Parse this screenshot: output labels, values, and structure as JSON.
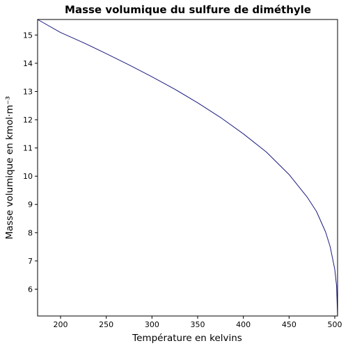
{
  "chart_data": {
    "type": "line",
    "title": "Masse volumique du sulfure de diméthyle",
    "xlabel": "Température en kelvins",
    "ylabel": "Masse volumique en kmol·m⁻³",
    "xlim": [
      174.88,
      503.04
    ],
    "ylim": [
      5.05,
      15.55
    ],
    "xticks": [
      200,
      250,
      300,
      350,
      400,
      450,
      500
    ],
    "yticks": [
      6,
      7,
      8,
      9,
      10,
      11,
      12,
      13,
      14,
      15
    ],
    "grid": false,
    "line_color": "#1a1a80",
    "series": [
      {
        "x": [
          174.88,
          200,
          225,
          250,
          275,
          300,
          325,
          350,
          375,
          400,
          425,
          450,
          470,
          480,
          490,
          495,
          500,
          502,
          503.04
        ],
        "values": [
          15.55,
          15.09,
          14.73,
          14.34,
          13.94,
          13.52,
          13.08,
          12.6,
          12.08,
          11.5,
          10.86,
          10.06,
          9.25,
          8.75,
          8.02,
          7.5,
          6.7,
          6.1,
          5.05
        ]
      }
    ]
  }
}
